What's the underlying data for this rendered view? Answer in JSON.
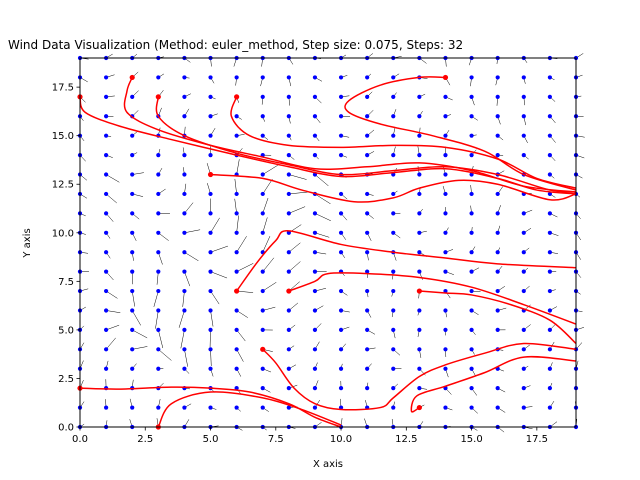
{
  "chart_data": {
    "type": "quiver",
    "title": "Wind Data Visualization (Method: euler_method, Step size: 0.075, Steps: 32",
    "xlabel": "X axis",
    "ylabel": "Y axis",
    "xlim": [
      0,
      19
    ],
    "ylim": [
      0,
      19
    ],
    "xticks": [
      "0.0",
      "2.5",
      "5.0",
      "7.5",
      "10.0",
      "12.5",
      "15.0",
      "17.5"
    ],
    "xtick_values": [
      0,
      2.5,
      5,
      7.5,
      10,
      12.5,
      15,
      17.5
    ],
    "yticks": [
      "0.0",
      "2.5",
      "5.0",
      "7.5",
      "10.0",
      "12.5",
      "15.0",
      "17.5"
    ],
    "ytick_values": [
      0,
      2.5,
      5,
      7.5,
      10,
      12.5,
      15,
      17.5
    ],
    "grid": false,
    "colors": {
      "grid_points": "#0000ff",
      "trajectories": "#ff0000",
      "vectors": "#000000"
    },
    "grid_points": {
      "x_range": [
        0,
        19
      ],
      "y_range": [
        0,
        19
      ],
      "spacing": 1
    },
    "trajectories": [
      {
        "start": [
          2,
          18
        ],
        "points": [
          [
            2,
            18
          ],
          [
            1.8,
            17.3
          ],
          [
            1.8,
            16.2
          ],
          [
            3,
            15.3
          ],
          [
            5,
            14.5
          ],
          [
            7,
            13.9
          ],
          [
            9,
            13.3
          ],
          [
            11,
            13.4
          ],
          [
            13,
            13.6
          ],
          [
            15,
            13.2
          ],
          [
            17,
            12.4
          ],
          [
            19,
            12.1
          ]
        ]
      },
      {
        "start": [
          3,
          17
        ],
        "points": [
          [
            3,
            17
          ],
          [
            3,
            16
          ],
          [
            4,
            15
          ],
          [
            6,
            14.1
          ],
          [
            8,
            13.5
          ],
          [
            10,
            13
          ],
          [
            12,
            13.2
          ],
          [
            14,
            13.4
          ],
          [
            16,
            13
          ],
          [
            18,
            12.2
          ],
          [
            19,
            12.1
          ]
        ]
      },
      {
        "start": [
          6,
          17
        ],
        "points": [
          [
            6,
            17
          ],
          [
            5.8,
            16
          ],
          [
            6.5,
            15
          ],
          [
            8,
            14.5
          ],
          [
            10,
            14.4
          ],
          [
            12,
            14.5
          ],
          [
            14,
            14.4
          ],
          [
            16,
            13.8
          ],
          [
            17.5,
            12.8
          ],
          [
            19,
            12.3
          ]
        ]
      },
      {
        "start": [
          14,
          18
        ],
        "points": [
          [
            14,
            18
          ],
          [
            13,
            18
          ],
          [
            11.5,
            17.6
          ],
          [
            10.3,
            16.8
          ],
          [
            10.3,
            16.2
          ],
          [
            11.5,
            15.6
          ],
          [
            13.5,
            15
          ],
          [
            15.5,
            14.2
          ],
          [
            17,
            13
          ],
          [
            19,
            12.2
          ]
        ]
      },
      {
        "start": [
          0,
          17
        ],
        "points": [
          [
            0,
            17
          ],
          [
            0.2,
            16.2
          ],
          [
            1.5,
            15.5
          ],
          [
            3.5,
            14.8
          ],
          [
            6,
            14
          ],
          [
            8,
            13.4
          ],
          [
            10,
            12.9
          ],
          [
            12,
            13.1
          ],
          [
            14,
            13.3
          ],
          [
            16,
            12.8
          ],
          [
            17.5,
            12.2
          ],
          [
            19,
            12
          ]
        ]
      },
      {
        "start": [
          5,
          13
        ],
        "points": [
          [
            5,
            13
          ],
          [
            7,
            12.8
          ],
          [
            8.5,
            12.2
          ],
          [
            10.5,
            11.6
          ],
          [
            12,
            11.8
          ],
          [
            13,
            12.3
          ],
          [
            14.5,
            12.7
          ],
          [
            16,
            12.5
          ],
          [
            18,
            11.7
          ],
          [
            19,
            12
          ]
        ]
      },
      {
        "start": [
          6,
          7
        ],
        "points": [
          [
            6,
            7
          ],
          [
            6.8,
            8.5
          ],
          [
            7.5,
            9.6
          ],
          [
            8,
            10.1
          ],
          [
            10,
            9.4
          ],
          [
            12,
            9
          ],
          [
            14,
            8.7
          ],
          [
            16,
            8.4
          ],
          [
            19,
            8.2
          ]
        ]
      },
      {
        "start": [
          8,
          7
        ],
        "points": [
          [
            8,
            7
          ],
          [
            9,
            7.5
          ],
          [
            9.5,
            7.9
          ],
          [
            11,
            7.9
          ],
          [
            13,
            7.7
          ],
          [
            15,
            7.2
          ],
          [
            17,
            6.3
          ],
          [
            19,
            5.3
          ]
        ]
      },
      {
        "start": [
          13,
          7
        ],
        "points": [
          [
            13,
            7
          ],
          [
            14,
            6.9
          ],
          [
            15,
            6.8
          ],
          [
            16.5,
            6.3
          ],
          [
            18,
            5.5
          ],
          [
            19,
            4.3
          ]
        ]
      },
      {
        "start": [
          7,
          4
        ],
        "points": [
          [
            7,
            4
          ],
          [
            7.5,
            3.3
          ],
          [
            8.2,
            2
          ],
          [
            9,
            1.2
          ],
          [
            10,
            0.9
          ],
          [
            11.5,
            1
          ],
          [
            12,
            1.5
          ],
          [
            13,
            2.6
          ],
          [
            14,
            3.2
          ],
          [
            15.5,
            3.8
          ],
          [
            17,
            4.3
          ],
          [
            19,
            4
          ]
        ]
      },
      {
        "start": [
          13,
          1
        ],
        "points": [
          [
            13,
            1
          ],
          [
            12.7,
            0.8
          ],
          [
            12.9,
            1.6
          ],
          [
            14,
            2.1
          ],
          [
            15.5,
            2.8
          ],
          [
            17,
            3.6
          ],
          [
            19,
            3.4
          ]
        ]
      },
      {
        "start": [
          3,
          0
        ],
        "points": [
          [
            3,
            0
          ],
          [
            3.5,
            1.2
          ],
          [
            5,
            1.8
          ],
          [
            7,
            1.5
          ],
          [
            8.5,
            0.9
          ],
          [
            10,
            0.1
          ]
        ]
      },
      {
        "start": [
          0,
          2
        ],
        "points": [
          [
            0,
            2
          ],
          [
            1.5,
            1.95
          ],
          [
            3.5,
            2.05
          ],
          [
            5,
            2
          ],
          [
            6.5,
            1.8
          ],
          [
            8,
            1.2
          ],
          [
            9,
            0.5
          ],
          [
            10,
            0
          ]
        ]
      }
    ]
  }
}
